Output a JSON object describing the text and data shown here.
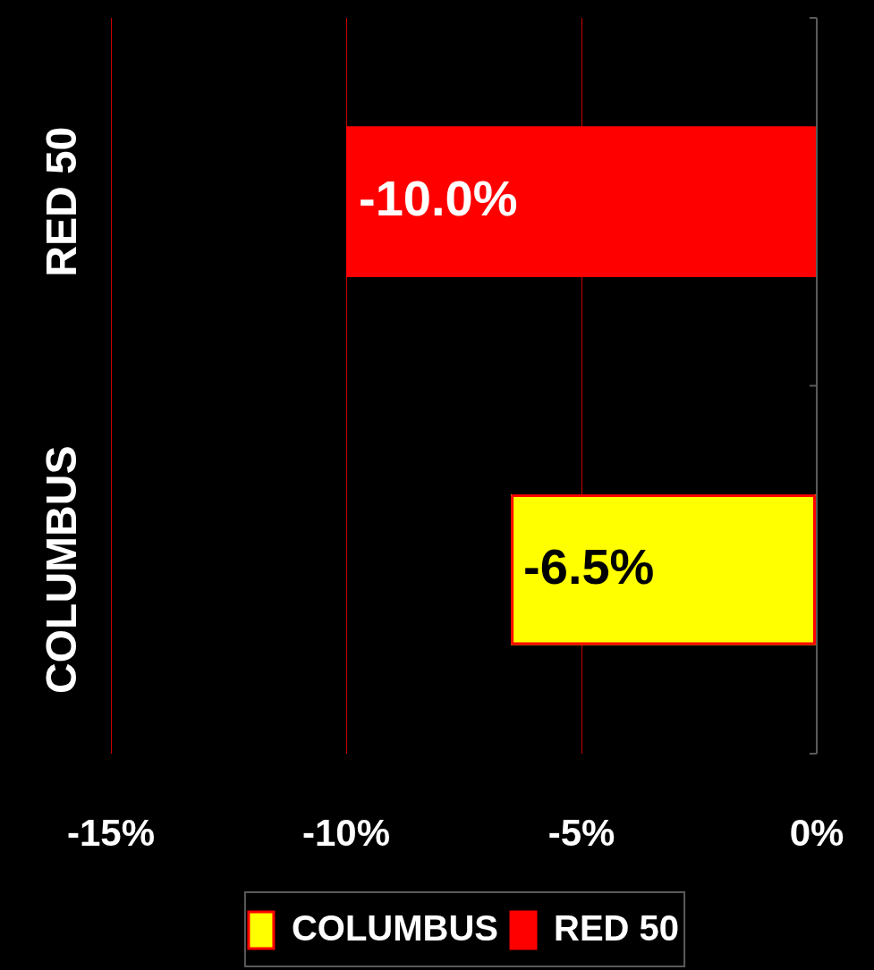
{
  "chart_data": {
    "type": "bar",
    "orientation": "horizontal",
    "categories": [
      "RED 50",
      "COLUMBUS"
    ],
    "series": [
      {
        "name": "COLUMBUS",
        "color": "#ffff00",
        "values": [
          null,
          -6.5
        ],
        "value_labels": [
          null,
          "-6.5%"
        ]
      },
      {
        "name": "RED 50",
        "color": "#ff0000",
        "values": [
          -10.0,
          null
        ],
        "value_labels": [
          "-10.0%",
          null
        ]
      }
    ],
    "xlim": [
      -15,
      0
    ],
    "xticks": [
      {
        "value": -15,
        "label": "-15%"
      },
      {
        "value": -10,
        "label": "-10%"
      },
      {
        "value": -5,
        "label": "-5%"
      },
      {
        "value": 0,
        "label": "0%"
      }
    ],
    "grid": "x",
    "legend": "bottom"
  }
}
